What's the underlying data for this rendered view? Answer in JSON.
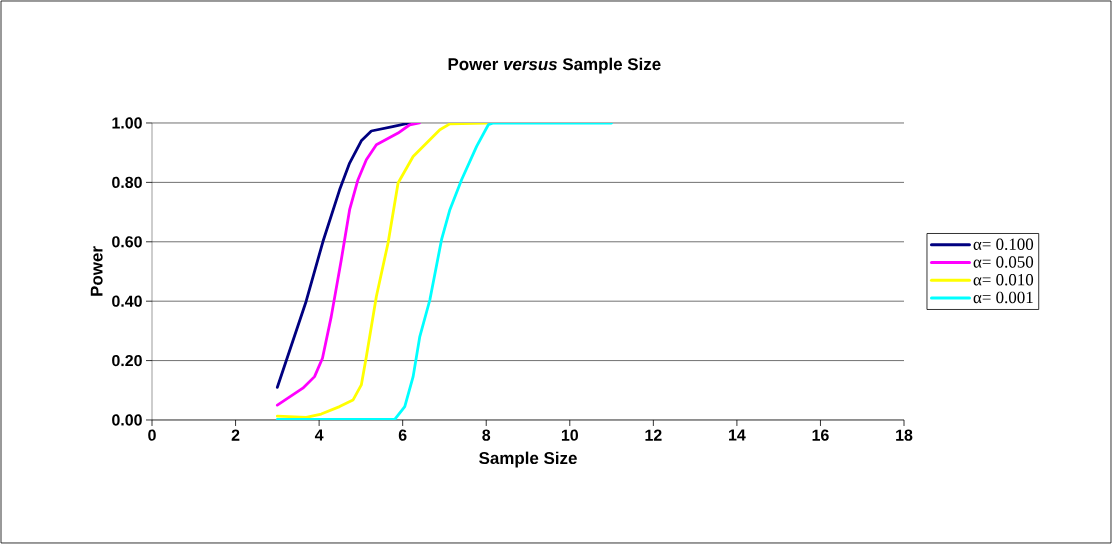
{
  "chart_data": {
    "type": "line",
    "title": "Power *versus* Sample Size",
    "xlabel": "Sample Size",
    "ylabel": "Power",
    "xlim": [
      0,
      18
    ],
    "xticks": [
      0,
      2,
      4,
      6,
      8,
      10,
      12,
      14,
      16,
      18
    ],
    "ylim": [
      0,
      1
    ],
    "yticks": [
      {
        "value": 0,
        "label": "0.00"
      },
      {
        "value": 0.2,
        "label": "0.20"
      },
      {
        "value": 0.4,
        "label": "0.40"
      },
      {
        "value": 0.6,
        "label": "0.60"
      },
      {
        "value": 0.8,
        "label": "0.80"
      },
      {
        "value": 1,
        "label": "1.00"
      }
    ],
    "grid": "y",
    "legend": "right",
    "marker": "none",
    "line_style": "solid",
    "series": [
      {
        "name": "α= 0.100",
        "color": "#000080",
        "x": [
          3.0,
          3.69,
          4.09,
          4.49,
          4.73,
          5.01,
          5.25,
          5.76,
          6.17
        ],
        "values": [
          0.11,
          0.4,
          0.6,
          0.775,
          0.865,
          0.94,
          0.973,
          0.988,
          1.0
        ]
      },
      {
        "name": "α= 0.050",
        "color": "#ff00ff",
        "x": [
          3.0,
          3.61,
          3.89,
          4.08,
          4.29,
          4.53,
          4.73,
          4.93,
          5.13,
          5.37,
          5.89,
          6.17,
          6.4
        ],
        "values": [
          0.05,
          0.107,
          0.146,
          0.208,
          0.348,
          0.539,
          0.708,
          0.809,
          0.876,
          0.927,
          0.966,
          0.994,
          1.0
        ]
      },
      {
        "name": "α= 0.010",
        "color": "#ffff00",
        "x": [
          3.0,
          3.69,
          4.05,
          4.49,
          4.81,
          5.01,
          5.13,
          5.37,
          5.65,
          5.89,
          6.25,
          6.89,
          7.13,
          8.0
        ],
        "values": [
          0.013,
          0.009,
          0.02,
          0.045,
          0.067,
          0.118,
          0.213,
          0.416,
          0.596,
          0.798,
          0.887,
          0.977,
          0.997,
          1.0
        ]
      },
      {
        "name": "α= 0.001",
        "color": "#00ffff",
        "x": [
          3.0,
          5.3,
          5.81,
          6.05,
          6.25,
          6.41,
          6.65,
          6.93,
          7.13,
          7.41,
          7.77,
          8.05,
          8.17,
          11.0
        ],
        "values": [
          0.002,
          0.002,
          0.002,
          0.045,
          0.146,
          0.281,
          0.404,
          0.607,
          0.708,
          0.809,
          0.921,
          0.994,
          1.0,
          1.0
        ]
      }
    ]
  }
}
